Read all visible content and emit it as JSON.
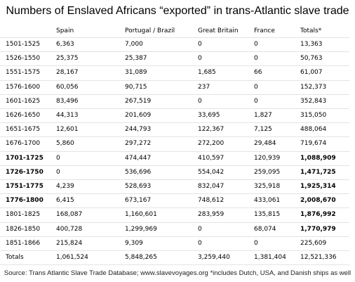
{
  "title": "Numbers of Enslaved Africans “exported” in trans-Atlantic slave trade",
  "table": {
    "columns": [
      "Spain",
      "Portugal / Brazil",
      "Great Britain",
      "France",
      "Totals*"
    ],
    "rows": [
      [
        "1501-1525",
        "6,363",
        "7,000",
        "0",
        "0",
        "13,363"
      ],
      [
        "1526-1550",
        "25,375",
        "25,387",
        "0",
        "0",
        "50,763"
      ],
      [
        "1551-1575",
        "28,167",
        "31,089",
        "1,685",
        "66",
        "61,007"
      ],
      [
        "1576-1600",
        "60,056",
        "90,715",
        "237",
        "0",
        "152,373"
      ],
      [
        "1601-1625",
        "83,496",
        "267,519",
        "0",
        "0",
        "352,843"
      ],
      [
        "1626-1650",
        "44,313",
        "201,609",
        "33,695",
        "1,827",
        "315,050"
      ],
      [
        "1651-1675",
        "12,601",
        "244,793",
        "122,367",
        "7,125",
        "488,064"
      ],
      [
        "1676-1700",
        "5,860",
        "297,272",
        "272,200",
        "29,484",
        "719,674"
      ],
      [
        "1701-1725",
        "0",
        "474,447",
        "410,597",
        "120,939",
        "1,088,909"
      ],
      [
        "1726-1750",
        "0",
        "536,696",
        "554,042",
        "259,095",
        "1,471,725"
      ],
      [
        "1751-1775",
        "4,239",
        "528,693",
        "832,047",
        "325,918",
        "1,925,314"
      ],
      [
        "1776-1800",
        "6,415",
        "673,167",
        "748,612",
        "433,061",
        "2,008,670"
      ],
      [
        "1801-1825",
        "168,087",
        "1,160,601",
        "283,959",
        "135,815",
        "1,876,992"
      ],
      [
        "1826-1850",
        "400,728",
        "1,299,969",
        "0",
        "68,074",
        "1,770,979"
      ],
      [
        "1851-1866",
        "215,824",
        "9,309",
        "0",
        "0",
        "225,609"
      ],
      [
        "Totals",
        "1,061,524",
        "5,848,265",
        "3,259,440",
        "1,381,404",
        "12,521,336"
      ]
    ]
  },
  "footer": "Source: Trans Atlantic Slave Trade Database; www.slavevoyages.org  *includes Dutch, USA, and Danish ships as well"
}
